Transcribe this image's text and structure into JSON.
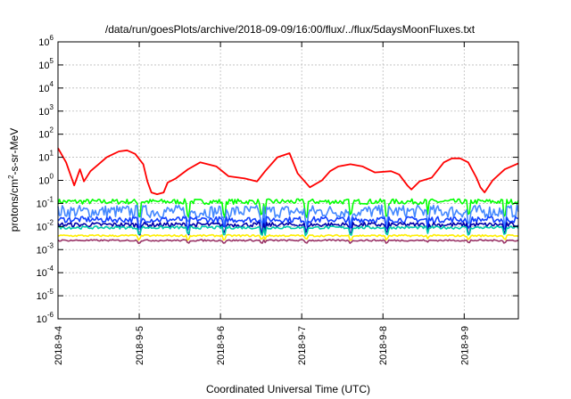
{
  "chart_data": {
    "type": "line",
    "title": "/data/run/goesPlots/archive/2018-09-09/16:00/flux/../flux/5daysMoonFluxes.txt",
    "xlabel": "Coordinated Universal Time (UTC)",
    "ylabel": {
      "pre": "protons/cm",
      "sup": "2",
      "post": "-s-sr-MeV"
    },
    "x_ticks": [
      "2018-9-4",
      "2018-9-5",
      "2018-9-6",
      "2018-9-7",
      "2018-9-8",
      "2018-9-9"
    ],
    "xlim": [
      "2018-09-04 00:00",
      "2018-09-09 16:00"
    ],
    "y_scale": "log",
    "ylim": [
      1e-06,
      1000000.0
    ],
    "y_tick_exponents": [
      -6,
      -5,
      -4,
      -3,
      -2,
      -1,
      0,
      1,
      2,
      3,
      4,
      5,
      6
    ],
    "grid": true,
    "series": [
      {
        "color": "#ff0000",
        "x_days": [
          0,
          0.1,
          0.2,
          0.27,
          0.32,
          0.4,
          0.5,
          0.6,
          0.75,
          0.85,
          0.95,
          1.05,
          1.1,
          1.15,
          1.22,
          1.3,
          1.35,
          1.45,
          1.6,
          1.75,
          1.95,
          2.1,
          2.3,
          2.45,
          2.55,
          2.7,
          2.85,
          2.95,
          3.1,
          3.25,
          3.35,
          3.45,
          3.6,
          3.75,
          3.9,
          4.1,
          4.2,
          4.3,
          4.35,
          4.45,
          4.6,
          4.75,
          4.85,
          4.95,
          5.05,
          5.15,
          5.2,
          5.25,
          5.35,
          5.5,
          5.67
        ],
        "values": [
          25,
          6,
          0.6,
          3,
          0.9,
          2.5,
          5,
          10,
          18,
          20,
          14,
          5,
          0.9,
          0.3,
          0.25,
          0.3,
          0.8,
          1.2,
          3,
          6,
          4,
          1.5,
          1.2,
          0.9,
          2.5,
          10,
          15,
          2,
          0.5,
          1,
          2.5,
          4,
          5,
          4,
          2.2,
          2.5,
          1.8,
          0.6,
          0.4,
          0.9,
          1.3,
          6,
          9,
          9,
          6,
          1.3,
          0.5,
          0.3,
          1,
          3,
          5.5
        ]
      },
      {
        "color": "#00ff00",
        "base": 0.12,
        "noise": 1.3,
        "dips": 0.25
      },
      {
        "color": "#4488ff",
        "base": 0.045,
        "noise": 1.9,
        "dips": 0.3
      },
      {
        "color": "#1040ff",
        "base": 0.02,
        "noise": 1.35,
        "dips": 0.4
      },
      {
        "color": "#0000aa",
        "base": 0.012,
        "noise": 1.25,
        "dips": 0.45
      },
      {
        "color": "#00ccaa",
        "base": 0.009,
        "noise": 1.15,
        "dips": 0.5
      },
      {
        "color": "#ffee00",
        "base": 0.004,
        "noise": 1.1,
        "dips": 0.7
      },
      {
        "color": "#993366",
        "base": 0.0025,
        "noise": 1.08,
        "dips": 0.8
      }
    ]
  }
}
